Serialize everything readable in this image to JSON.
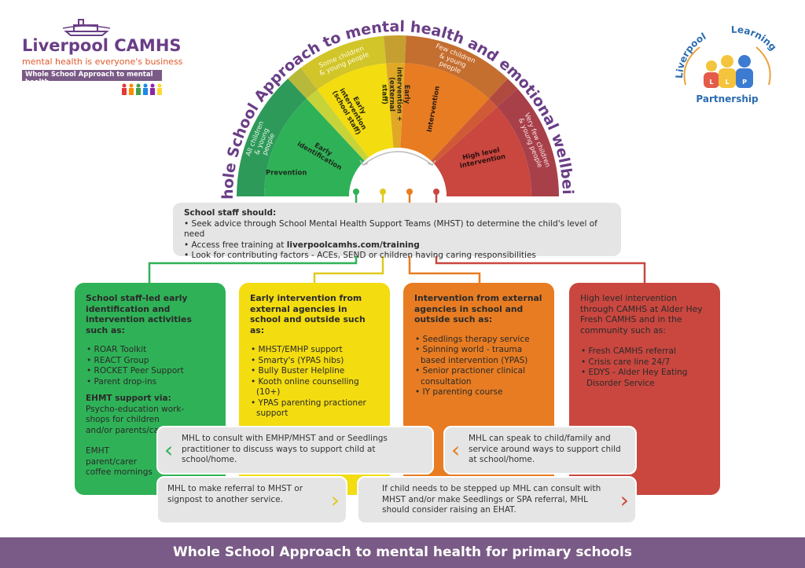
{
  "logo_left": {
    "brand": "Liverpool CAMHS",
    "tagline": "mental health is everyone's business",
    "subtitle": "Whole School Approach to mental health"
  },
  "logo_right": {
    "word1": "Liverpool",
    "word2": "Learning",
    "word3": "Partnership",
    "letters": [
      "L",
      "L",
      "P"
    ]
  },
  "title": "Whole School Approach to mental health and emotional wellbeing",
  "arc": {
    "outer": [
      "All children & young people",
      "Some children & young people",
      "Few children & young people",
      "Very few children & young people"
    ],
    "inner": [
      "Prevention",
      "Early identification",
      "Early intervention (school staff)",
      "Early intervention + (external staff)",
      "Intervention",
      "High level intervention"
    ],
    "colors": {
      "green": "#2fb257",
      "yellow": "#f3dc10",
      "orange": "#e87c22",
      "red": "#c9473f"
    }
  },
  "staff": {
    "heading": "School staff should:",
    "items": [
      "Seek advice through School Mental Health Support Teams (MHST) to determine the child's level of need",
      "Access free training at ",
      "Look for contributing factors - ACEs, SEND or children having caring responsibilities"
    ],
    "link": "liverpoolcamhs.com/training"
  },
  "cards": [
    {
      "heading": "School staff-led early identification and intervention activities such as:",
      "items": [
        "ROAR Toolkit",
        "REACT Group",
        "ROCKET Peer Support",
        "Parent drop-ins"
      ],
      "sub_heading": "EHMT support via:",
      "sub_text": "Psycho-education work-shops for children and/or parents/carers",
      "extra": "EMHT parent/carer coffee mornings"
    },
    {
      "heading": "Early intervention from external agencies in school and outside such as:",
      "items": [
        "MHST/EMHP support",
        "Smarty's (YPAS hibs)",
        "Bully Buster Helpline",
        "Kooth online counselling (10+)",
        "YPAS parenting practioner support"
      ]
    },
    {
      "heading": "Intervention from external agencies in school and outside such as:",
      "items": [
        "Seedlings therapy service",
        "Spinning world - trauma based intervention (YPAS)",
        "Senior practioner clinical consultation",
        "IY parenting course"
      ]
    },
    {
      "heading": "High level intervention through CAMHS at Alder Hey Fresh CAMHS and in the community such as:",
      "items": [
        "Fresh CAMHS referral",
        "Crisis care line 24/7",
        "EDYS - Alder Hey Eating Disorder Service"
      ]
    }
  ],
  "callouts": [
    "MHL to consult with EMHP/MHST and or Seedlings practitioner to discuss ways to support child at school/home.",
    "MHL can speak to child/family and service around ways to support child at school/home.",
    "MHL to make referral to MHST or signpost to another service.",
    "If child needs to be stepped up MHL can consult with MHST and/or make Seedlings or SPA referral, MHL should consider raising an EHAT."
  ],
  "footer": "Whole School Approach to mental health for primary schools"
}
